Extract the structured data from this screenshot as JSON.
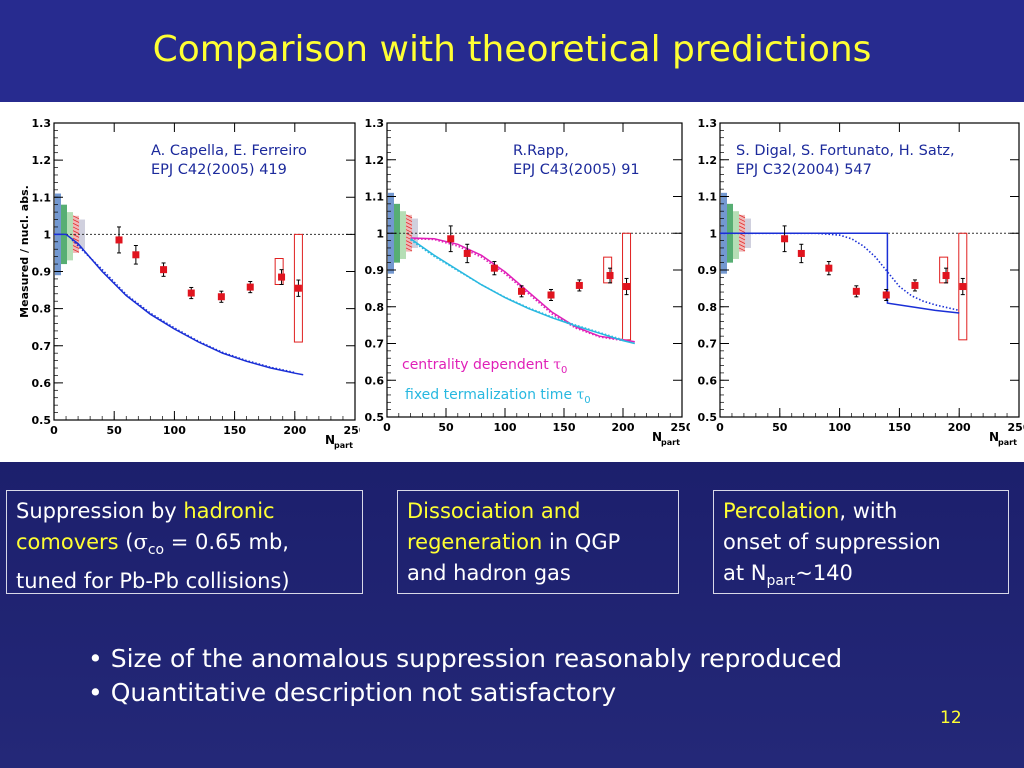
{
  "slide": {
    "title": "Comparison with theoretical predictions",
    "page_number": "12"
  },
  "boxes": [
    {
      "hl1": "hadronic",
      "pre1": "Suppression by ",
      "hl2": "comovers",
      "line2_tail_open": " (",
      "sigma": "σ",
      "sigma_sub": "co",
      "line2_tail_close": " = 0.65 mb,",
      "line3": "tuned for Pb-Pb collisions)"
    },
    {
      "hl1": "Dissociation and",
      "hl2": "regeneration",
      "tail2": " in QGP",
      "line3": "and hadron gas"
    },
    {
      "hl1": "Percolation",
      "tail1": ", with",
      "line2": "onset of suppression",
      "line3_pre": "at N",
      "line3_sub": "part",
      "line3_post": "~140"
    }
  ],
  "bullets": [
    "Size of the anomalous suppression reasonably reproduced",
    "Quantitative description not satisfactory"
  ],
  "colors": {
    "title": "#ffff33",
    "highlight": "#ffff33",
    "data_marker": "#e0141e",
    "model_curve": "#1a2fd6",
    "magenta_curve": "#e020b8",
    "cyan_curve": "#28b8e0",
    "syst_box": "#e02020",
    "citation_text": "#1c2a9c"
  },
  "chart_data": [
    {
      "type": "scatter",
      "ylabel": "Measured / nucl. abs.",
      "xlabel_main": "N",
      "xlabel_sub": "part",
      "xlim": [
        0,
        250
      ],
      "ylim": [
        0.5,
        1.3
      ],
      "xticks": [
        0,
        50,
        100,
        150,
        200,
        250
      ],
      "yticks": [
        0.5,
        0.6,
        0.7,
        0.8,
        0.9,
        1,
        1.1,
        1.2,
        1.3
      ],
      "annotation": [
        "A. Capella, E. Ferreiro",
        "EPJ C42(2005) 419"
      ],
      "data": {
        "x": [
          54,
          68,
          91,
          114,
          139,
          163,
          189,
          203
        ],
        "y": [
          0.985,
          0.945,
          0.905,
          0.842,
          0.832,
          0.858,
          0.885,
          0.855
        ],
        "err": [
          0.035,
          0.025,
          0.018,
          0.015,
          0.015,
          0.015,
          0.02,
          0.022
        ]
      },
      "syst_boxes": [
        {
          "x": 187,
          "ylo": 0.865,
          "yhi": 0.935
        },
        {
          "x": 203,
          "ylo": 0.71,
          "yhi": 1.0
        }
      ],
      "curves": [
        {
          "style": "solid",
          "color": "model_curve",
          "x": [
            0,
            10,
            20,
            40,
            60,
            80,
            100,
            120,
            140,
            160,
            180,
            200,
            207
          ],
          "y": [
            1.0,
            1.0,
            0.975,
            0.9,
            0.835,
            0.785,
            0.745,
            0.71,
            0.68,
            0.658,
            0.64,
            0.626,
            0.622
          ]
        },
        {
          "style": "dotted",
          "color": "model_curve",
          "x": [
            15,
            40,
            60,
            80,
            100,
            120,
            140,
            160,
            180,
            200
          ],
          "y": [
            0.985,
            0.905,
            0.838,
            0.788,
            0.748,
            0.712,
            0.682,
            0.66,
            0.642,
            0.628
          ]
        }
      ]
    },
    {
      "type": "scatter",
      "xlabel_main": "N",
      "xlabel_sub": "part",
      "xlim": [
        0,
        250
      ],
      "ylim": [
        0.5,
        1.3
      ],
      "xticks": [
        0,
        50,
        100,
        150,
        200,
        250
      ],
      "yticks": [
        0.5,
        0.6,
        0.7,
        0.8,
        0.9,
        1,
        1.1,
        1.2,
        1.3
      ],
      "annotation": [
        "R.Rapp,",
        "EPJ C43(2005) 91"
      ],
      "legend_labels": [
        {
          "text": "centrality dependent ",
          "greek": "τ",
          "sub": "0",
          "color": "magenta_curve"
        },
        {
          "text": "fixed termalization time ",
          "greek": "τ",
          "sub": "0",
          "color": "cyan_curve"
        }
      ],
      "data": {
        "x": [
          54,
          68,
          91,
          114,
          139,
          163,
          189,
          203
        ],
        "y": [
          0.985,
          0.945,
          0.905,
          0.842,
          0.832,
          0.858,
          0.885,
          0.855
        ],
        "err": [
          0.035,
          0.025,
          0.018,
          0.015,
          0.015,
          0.015,
          0.02,
          0.022
        ]
      },
      "syst_boxes": [
        {
          "x": 187,
          "ylo": 0.865,
          "yhi": 0.935
        },
        {
          "x": 203,
          "ylo": 0.71,
          "yhi": 1.0
        }
      ],
      "curves": [
        {
          "style": "solid",
          "color": "magenta_curve",
          "x": [
            20,
            40,
            60,
            80,
            100,
            120,
            140,
            160,
            180,
            200,
            210
          ],
          "y": [
            0.987,
            0.985,
            0.97,
            0.94,
            0.895,
            0.84,
            0.785,
            0.745,
            0.72,
            0.71,
            0.705
          ]
        },
        {
          "style": "dotted",
          "color": "magenta_curve",
          "x": [
            20,
            40,
            60,
            80,
            100,
            120,
            140,
            160,
            180,
            200
          ],
          "y": [
            0.985,
            0.983,
            0.965,
            0.935,
            0.89,
            0.835,
            0.78,
            0.742,
            0.718,
            0.708
          ]
        },
        {
          "style": "solid",
          "color": "cyan_curve",
          "x": [
            20,
            40,
            60,
            80,
            100,
            120,
            140,
            160,
            180,
            200,
            210
          ],
          "y": [
            0.985,
            0.94,
            0.9,
            0.86,
            0.825,
            0.795,
            0.77,
            0.748,
            0.728,
            0.708,
            0.7
          ]
        },
        {
          "style": "dotted",
          "color": "cyan_curve",
          "x": [
            20,
            40,
            60,
            80,
            100,
            120,
            140,
            160,
            180,
            200
          ],
          "y": [
            0.982,
            0.937,
            0.898,
            0.86,
            0.826,
            0.797,
            0.772,
            0.75,
            0.73,
            0.71
          ]
        }
      ]
    },
    {
      "type": "scatter",
      "xlabel_main": "N",
      "xlabel_sub": "part",
      "xlim": [
        0,
        250
      ],
      "ylim": [
        0.5,
        1.3
      ],
      "xticks": [
        0,
        50,
        100,
        150,
        200,
        250
      ],
      "yticks": [
        0.5,
        0.6,
        0.7,
        0.8,
        0.9,
        1,
        1.1,
        1.2,
        1.3
      ],
      "annotation": [
        "S. Digal, S. Fortunato, H. Satz,",
        "EPJ C32(2004) 547"
      ],
      "data": {
        "x": [
          54,
          68,
          91,
          114,
          139,
          163,
          189,
          203
        ],
        "y": [
          0.985,
          0.945,
          0.905,
          0.842,
          0.832,
          0.858,
          0.885,
          0.855
        ],
        "err": [
          0.035,
          0.025,
          0.018,
          0.015,
          0.015,
          0.015,
          0.02,
          0.022
        ]
      },
      "syst_boxes": [
        {
          "x": 187,
          "ylo": 0.865,
          "yhi": 0.935
        },
        {
          "x": 203,
          "ylo": 0.71,
          "yhi": 1.0
        }
      ],
      "curves": [
        {
          "style": "solid",
          "color": "model_curve",
          "x": [
            0,
            140,
            140,
            160,
            180,
            200
          ],
          "y": [
            1.0,
            1.0,
            0.81,
            0.8,
            0.79,
            0.783
          ]
        },
        {
          "style": "dotted",
          "color": "model_curve",
          "x": [
            0,
            80,
            100,
            110,
            120,
            130,
            140,
            150,
            160,
            170,
            180,
            200
          ],
          "y": [
            1.0,
            1.0,
            0.995,
            0.985,
            0.965,
            0.935,
            0.895,
            0.855,
            0.83,
            0.815,
            0.805,
            0.79
          ]
        }
      ]
    }
  ],
  "syst_bands": [
    {
      "color": "#5a86c8",
      "ylo": 0.89,
      "yhi": 1.11
    },
    {
      "color": "#3aa05a",
      "ylo": 0.92,
      "yhi": 1.08
    },
    {
      "color": "#a8d8a8",
      "ylo": 0.93,
      "yhi": 1.06
    },
    {
      "color": "#f0b0b0",
      "ylo": 0.95,
      "yhi": 1.05
    },
    {
      "color": "#c8c8d8",
      "ylo": 0.96,
      "yhi": 1.04
    }
  ]
}
